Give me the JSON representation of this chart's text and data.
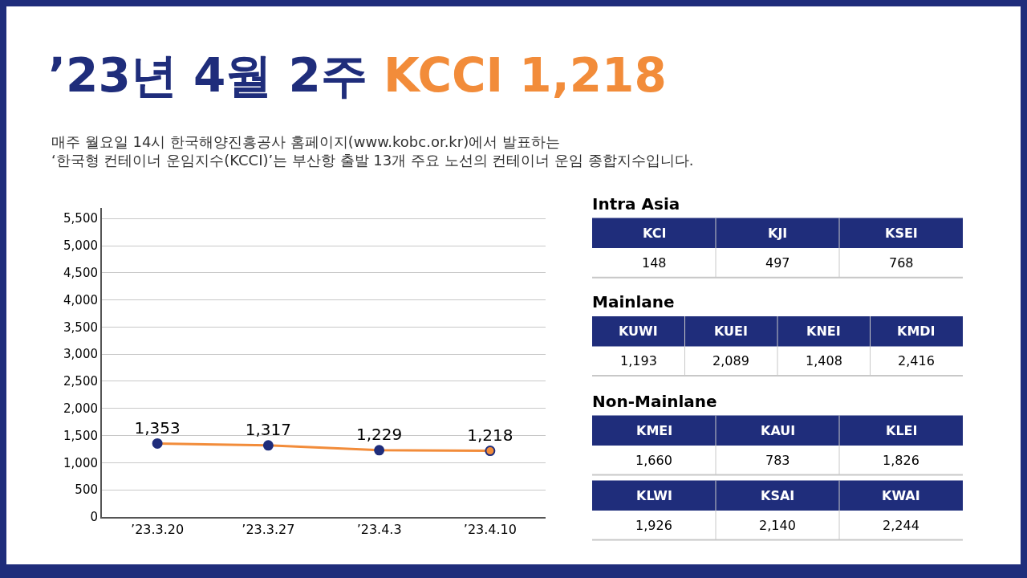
{
  "chart_data": [
    {
      "type": "line",
      "title": "’23년 4월 2주 KCCI 1,218",
      "subtitle": "매주 월요일 14시 한국해양진흥공사 홈페이지(www.kobc.or.kr)에서 발표하는\n‘한국형 컨테이너 운임지수(KCCI)’는 부산항 출발 13개 주요 노선의 컨테이너 운임 종합지수입니다.",
      "categories": [
        "’23.3.20",
        "’23.3.27",
        "’23.4.3",
        "’23.4.10"
      ],
      "series": [
        {
          "color": "#f28c3a",
          "colors": [
            "#1f2d7b",
            "#1f2d7b",
            "#1f2d7b",
            "#f28c3a"
          ],
          "values": [
            1353,
            1317,
            1229,
            1218
          ],
          "value_labels": [
            "1,353",
            "1,317",
            "1,229",
            "1,218"
          ]
        }
      ],
      "marker": "circle",
      "line_style": "solid",
      "grid": "y",
      "ylim": [
        0,
        5700
      ],
      "yticks": [
        0,
        500,
        {
          "value": 1000,
          "label": "1,000"
        },
        {
          "value": 1500,
          "label": "1,500"
        },
        {
          "value": 2000,
          "label": "2,000"
        },
        {
          "value": 2500,
          "label": "2,500"
        },
        {
          "value": 3000,
          "label": "3,000"
        },
        {
          "value": 3500,
          "label": "3,500"
        },
        {
          "value": 4000,
          "label": "4,000"
        },
        {
          "value": 4500,
          "label": "4,500"
        },
        {
          "value": 5000,
          "label": "5,000"
        },
        {
          "value": 5500,
          "label": "5,500"
        }
      ]
    },
    {
      "type": "other",
      "title": "Intra Asia",
      "categories": [
        "KCI",
        "KJI",
        "KSEI"
      ],
      "value_labels": [
        "148",
        "497",
        "768"
      ]
    },
    {
      "type": "other",
      "title": "Mainlane",
      "categories": [
        "KUWI",
        "KUEI",
        "KNEI",
        "KMDI"
      ],
      "value_labels": [
        "1,193",
        "2,089",
        "1,408",
        "2,416"
      ]
    },
    {
      "type": "other",
      "title": "Non-Mainlane",
      "categories": [
        "KMEI",
        "KAUI",
        "KLEI"
      ],
      "value_labels": [
        "1,660",
        "783",
        "1,826"
      ]
    },
    {
      "type": "other",
      "categories": [
        "KLWI",
        "KSAI",
        "KWAI"
      ],
      "value_labels": [
        "1,926",
        "2,140",
        "2,244"
      ]
    }
  ]
}
